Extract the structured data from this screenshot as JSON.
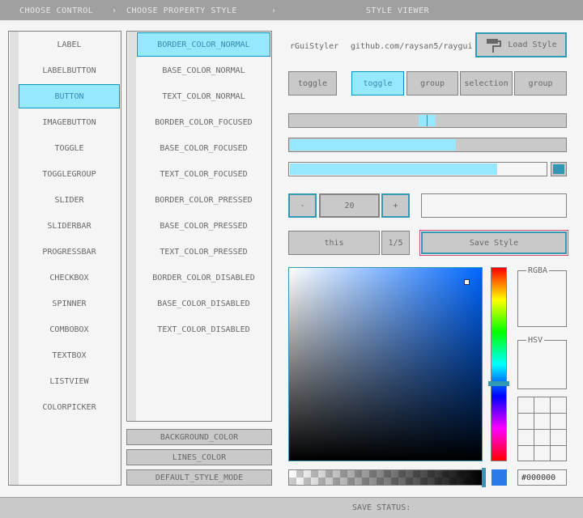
{
  "header": {
    "control_title": "CHOOSE CONTROL",
    "separator_1": "›",
    "property_title": "CHOOSE PROPERTY STYLE",
    "separator_2": "›",
    "viewer_title": "STYLE VIEWER"
  },
  "controls": [
    "LABEL",
    "LABELBUTTON",
    "BUTTON",
    "IMAGEBUTTON",
    "TOGGLE",
    "TOGGLEGROUP",
    "SLIDER",
    "SLIDERBAR",
    "PROGRESSBAR",
    "CHECKBOX",
    "SPINNER",
    "COMBOBOX",
    "TEXTBOX",
    "LISTVIEW",
    "COLORPICKER"
  ],
  "properties": [
    "BORDER_COLOR_NORMAL",
    "BASE_COLOR_NORMAL",
    "TEXT_COLOR_NORMAL",
    "BORDER_COLOR_FOCUSED",
    "BASE_COLOR_FOCUSED",
    "TEXT_COLOR_FOCUSED",
    "BORDER_COLOR_PRESSED",
    "BASE_COLOR_PRESSED",
    "TEXT_COLOR_PRESSED",
    "BORDER_COLOR_DISABLED",
    "BASE_COLOR_DISABLED",
    "TEXT_COLOR_DISABLED"
  ],
  "property_buttons": [
    "BACKGROUND_COLOR",
    "LINES_COLOR",
    "DEFAULT_STYLE_MODE"
  ],
  "viewer": {
    "label": "rGuiStyler",
    "link": "github.com/raysan5/raygui",
    "load_button": "Load Style",
    "toggle": "toggle",
    "toggle_group": [
      "toggle",
      "group",
      "selection",
      "group"
    ],
    "spinner_minus": "-",
    "spinner_value": "20",
    "spinner_plus": "+",
    "combo_text": "this",
    "combo_count": "1/5",
    "save_button": "Save Style",
    "rgba_label": "RGBA",
    "hsv_label": "HSV",
    "hex_value": "#000000"
  },
  "status": {
    "label": "SAVE STATUS:"
  }
}
